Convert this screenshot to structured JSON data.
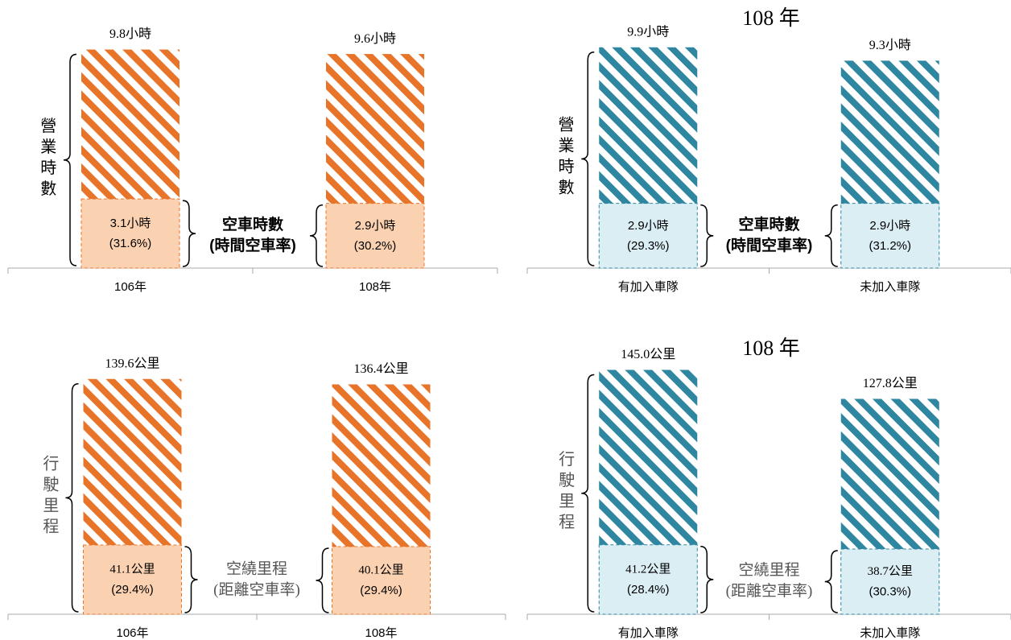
{
  "chart_data": [
    {
      "type": "bar",
      "categories": [
        "106年",
        "108年"
      ],
      "ylim": [
        0,
        10
      ],
      "overlap": true,
      "series": [
        {
          "name": "營業時數",
          "color": "#e8742a",
          "values": [
            9.8,
            9.6
          ],
          "value_labels": [
            "9.8小時",
            "9.6小時"
          ]
        },
        {
          "name": "空車時數",
          "sublabel": "(時間空車率)",
          "color": "#fbd2b1",
          "values": [
            3.1,
            2.9
          ],
          "value_labels": [
            "3.1小時",
            "2.9小時"
          ],
          "share_labels": [
            "(31.6%)",
            "(30.2%)"
          ]
        }
      ]
    },
    {
      "type": "bar",
      "title": "108 年",
      "categories": [
        "有加入車隊",
        "未加入車隊"
      ],
      "ylim": [
        0,
        10
      ],
      "overlap": true,
      "series": [
        {
          "name": "營業時數",
          "color": "#2e86a0",
          "values": [
            9.9,
            9.3
          ],
          "value_labels": [
            "9.9小時",
            "9.3小時"
          ]
        },
        {
          "name": "空車時數",
          "sublabel": "(時間空車率)",
          "color": "#dbeef4",
          "values": [
            2.9,
            2.9
          ],
          "value_labels": [
            "2.9小時",
            "2.9小時"
          ],
          "share_labels": [
            "(29.3%)",
            "(31.2%)"
          ]
        }
      ]
    },
    {
      "type": "bar",
      "categories": [
        "106年",
        "108年"
      ],
      "ylim": [
        0,
        150
      ],
      "overlap": true,
      "series": [
        {
          "name": "行駛里程",
          "color": "#e8742a",
          "values": [
            139.6,
            136.4
          ],
          "value_labels": [
            "139.6公里",
            "136.4公里"
          ]
        },
        {
          "name": "空繞里程",
          "sublabel": "(距離空車率)",
          "color": "#fbd2b1",
          "values": [
            41.1,
            40.1
          ],
          "value_labels": [
            "41.1公里",
            "40.1公里"
          ],
          "share_labels": [
            "(29.4%)",
            "(29.4%)"
          ]
        }
      ]
    },
    {
      "type": "bar",
      "title": "108 年",
      "categories": [
        "有加入車隊",
        "未加入車隊"
      ],
      "ylim": [
        0,
        150
      ],
      "overlap": true,
      "series": [
        {
          "name": "行駛里程",
          "color": "#2e86a0",
          "values": [
            145.0,
            127.8
          ],
          "value_labels": [
            "145.0公里",
            "127.8公里"
          ]
        },
        {
          "name": "空繞里程",
          "sublabel": "(距離空車率)",
          "color": "#dbeef4",
          "values": [
            41.2,
            38.7
          ],
          "value_labels": [
            "41.2公里",
            "38.7公里"
          ],
          "share_labels": [
            "(28.4%)",
            "(30.3%)"
          ]
        }
      ]
    }
  ]
}
